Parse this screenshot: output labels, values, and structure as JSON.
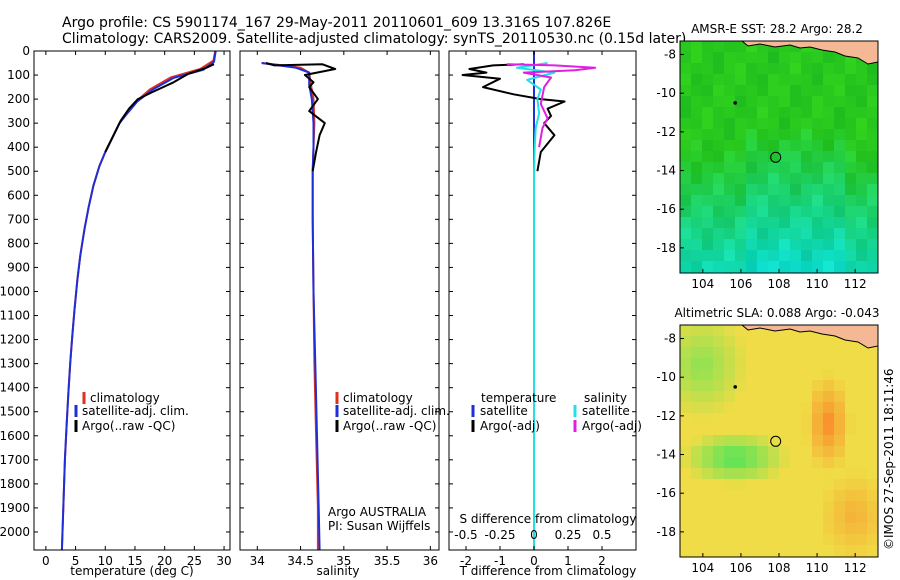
{
  "header": {
    "line1": "Argo profile: CS 5901174_167 29-May-2011 20110601_609 13.316S 107.826E",
    "line2": "Climatology: CARS2009. Satellite-adjusted climatology: synTS_20110530.nc (0.15d later)"
  },
  "side_label": "©IMOS 27-Sep-2011 18:11:46",
  "colors": {
    "climatology": "#e0301e",
    "satellite": "#1f2fd8",
    "argo": "#000000",
    "sat_salinity": "#22e0e8",
    "argo_salinity": "#e020e0"
  },
  "chart_data": [
    {
      "type": "line",
      "id": "temperature",
      "xlabel": "temperature (deg C)",
      "ylabel": "",
      "xlim": [
        -2,
        31
      ],
      "ylim": [
        0,
        2075
      ],
      "x_ticks": [
        0,
        5,
        10,
        15,
        20,
        25,
        30
      ],
      "y_ticks": [
        0,
        100,
        200,
        300,
        400,
        500,
        600,
        700,
        800,
        900,
        1000,
        1100,
        1200,
        1300,
        1400,
        1500,
        1600,
        1700,
        1800,
        1900,
        2000
      ],
      "legend": [
        "climatology",
        "satellite-adj. clim.",
        "Argo(..raw -QC)"
      ],
      "series": [
        {
          "name": "climatology",
          "color": "#e0301e",
          "points": [
            [
              28.5,
              0
            ],
            [
              28.2,
              40
            ],
            [
              26,
              75
            ],
            [
              21,
              110
            ],
            [
              17.5,
              160
            ],
            [
              15.2,
              210
            ],
            [
              13.6,
              260
            ],
            [
              12.4,
              300
            ],
            [
              11.2,
              360
            ],
            [
              10,
              420
            ],
            [
              9,
              480
            ],
            [
              8,
              560
            ],
            [
              7.2,
              650
            ],
            [
              6.5,
              740
            ],
            [
              5.8,
              850
            ],
            [
              5.3,
              950
            ],
            [
              4.8,
              1080
            ],
            [
              4.4,
              1200
            ],
            [
              4.1,
              1300
            ],
            [
              3.8,
              1420
            ],
            [
              3.5,
              1550
            ],
            [
              3.2,
              1700
            ],
            [
              3,
              1850
            ],
            [
              2.8,
              2000
            ],
            [
              2.7,
              2075
            ]
          ]
        },
        {
          "name": "satellite-adj. clim.",
          "color": "#1f2fd8",
          "points": [
            [
              28.6,
              0
            ],
            [
              28.3,
              45
            ],
            [
              26.5,
              78
            ],
            [
              21.5,
              112
            ],
            [
              18,
              160
            ],
            [
              15.4,
              210
            ],
            [
              13.7,
              260
            ],
            [
              12.4,
              300
            ],
            [
              11.2,
              360
            ],
            [
              10,
              420
            ],
            [
              9,
              480
            ],
            [
              8,
              560
            ],
            [
              7.2,
              650
            ],
            [
              6.5,
              740
            ],
            [
              5.8,
              850
            ],
            [
              5.3,
              950
            ],
            [
              4.8,
              1080
            ],
            [
              4.4,
              1200
            ],
            [
              4.1,
              1300
            ],
            [
              3.8,
              1420
            ],
            [
              3.5,
              1550
            ],
            [
              3.2,
              1700
            ],
            [
              3,
              1850
            ],
            [
              2.8,
              2000
            ],
            [
              2.7,
              2075
            ]
          ]
        },
        {
          "name": "Argo(..raw -QC)",
          "color": "#000000",
          "points": [
            [
              28.3,
              55
            ],
            [
              27,
              70
            ],
            [
              24,
              95
            ],
            [
              21.5,
              130
            ],
            [
              18,
              170
            ],
            [
              15.5,
              200
            ],
            [
              14,
              240
            ],
            [
              12.6,
              290
            ],
            [
              11.4,
              350
            ],
            [
              10,
              420
            ]
          ]
        }
      ]
    },
    {
      "type": "line",
      "id": "salinity",
      "xlabel": "salinity",
      "ylabel": "",
      "xlim": [
        33.8,
        36.1
      ],
      "ylim": [
        0,
        2075
      ],
      "x_ticks": [
        34,
        34.5,
        35,
        35.5,
        36
      ],
      "y_ticks": [
        0,
        100,
        200,
        300,
        400,
        500,
        600,
        700,
        800,
        900,
        1000,
        1100,
        1200,
        1300,
        1400,
        1500,
        1600,
        1700,
        1800,
        1900,
        2000
      ],
      "legend": [
        "climatology",
        "satellite-adj. clim.",
        "Argo(..raw -QC)"
      ],
      "annotations": [
        "Argo AUSTRALIA",
        "PI: Susan Wijffels"
      ],
      "series": [
        {
          "name": "climatology",
          "color": "#e0301e",
          "points": [
            [
              34.05,
              50
            ],
            [
              34.3,
              60
            ],
            [
              34.5,
              70
            ],
            [
              34.6,
              90
            ],
            [
              34.62,
              140
            ],
            [
              34.65,
              200
            ],
            [
              34.66,
              300
            ],
            [
              34.65,
              400
            ],
            [
              34.64,
              500
            ],
            [
              34.64,
              700
            ],
            [
              34.65,
              1000
            ],
            [
              34.66,
              1300
            ],
            [
              34.68,
              1600
            ],
            [
              34.7,
              1900
            ],
            [
              34.7,
              2075
            ]
          ]
        },
        {
          "name": "satellite-adj. clim.",
          "color": "#1f2fd8",
          "points": [
            [
              34.05,
              50
            ],
            [
              34.25,
              60
            ],
            [
              34.45,
              70
            ],
            [
              34.6,
              90
            ],
            [
              34.6,
              140
            ],
            [
              34.63,
              200
            ],
            [
              34.65,
              300
            ],
            [
              34.65,
              400
            ],
            [
              34.64,
              500
            ],
            [
              34.64,
              700
            ],
            [
              34.65,
              1000
            ],
            [
              34.67,
              1300
            ],
            [
              34.69,
              1600
            ],
            [
              34.71,
              1900
            ],
            [
              34.72,
              2075
            ]
          ]
        },
        {
          "name": "Argo(..raw -QC)",
          "color": "#000000",
          "points": [
            [
              34.1,
              50
            ],
            [
              34.2,
              60
            ],
            [
              34.75,
              55
            ],
            [
              34.9,
              75
            ],
            [
              34.55,
              100
            ],
            [
              34.65,
              130
            ],
            [
              34.6,
              150
            ],
            [
              34.7,
              200
            ],
            [
              34.6,
              250
            ],
            [
              34.78,
              300
            ],
            [
              34.72,
              350
            ],
            [
              34.68,
              420
            ],
            [
              34.64,
              500
            ]
          ]
        }
      ]
    },
    {
      "type": "line",
      "id": "difference",
      "xlabel": "T difference from climatology",
      "x2label": "S difference from climatology",
      "ylabel": "",
      "xlim": [
        -2.5,
        3
      ],
      "x2lim": [
        -0.625,
        0.75
      ],
      "ylim": [
        0,
        2075
      ],
      "x_ticks": [
        -2,
        -1,
        0,
        1,
        2
      ],
      "x2_ticks": [
        -0.5,
        -0.25,
        0,
        0.25,
        0.5
      ],
      "y_ticks": [
        0,
        100,
        200,
        300,
        400,
        500,
        600,
        700,
        800,
        900,
        1000,
        1100,
        1200,
        1300,
        1400,
        1500,
        1600,
        1700,
        1800,
        1900,
        2000
      ],
      "legend_title_left": "temperature",
      "legend_title_right": "salinity",
      "legend": [
        "satellite",
        "Argo(-adj)",
        "satellite",
        "Argo(-adj)"
      ],
      "series": [
        {
          "name": "satellite",
          "color": "#1f2fd8",
          "points": [
            [
              0,
              0
            ],
            [
              0,
              2075
            ]
          ]
        },
        {
          "name": "Argo(-adj)",
          "color": "#000000",
          "points": [
            [
              -0.3,
              55
            ],
            [
              -1.2,
              60
            ],
            [
              -1.9,
              75
            ],
            [
              -1.4,
              90
            ],
            [
              -2.1,
              100
            ],
            [
              -1,
              115
            ],
            [
              -1.5,
              150
            ],
            [
              -0.6,
              180
            ],
            [
              0.2,
              200
            ],
            [
              0.9,
              210
            ],
            [
              0.4,
              240
            ],
            [
              0.5,
              270
            ],
            [
              0.3,
              300
            ],
            [
              0.6,
              350
            ],
            [
              0.2,
              420
            ],
            [
              0.1,
              500
            ]
          ]
        },
        {
          "name": "satellite",
          "color": "#22e0e8",
          "points": [
            [
              0.4,
              50
            ],
            [
              -0.5,
              70
            ],
            [
              0.6,
              90
            ],
            [
              -0.2,
              120
            ],
            [
              0.2,
              160
            ],
            [
              0.1,
              200
            ],
            [
              0.15,
              260
            ],
            [
              0.05,
              320
            ],
            [
              0.02,
              400
            ],
            [
              0,
              500
            ],
            [
              0,
              2075
            ]
          ]
        },
        {
          "name": "Argo(-adj)",
          "color": "#e020e0",
          "points": [
            [
              -0.8,
              55
            ],
            [
              0.6,
              60
            ],
            [
              1.8,
              70
            ],
            [
              1.2,
              80
            ],
            [
              -0.3,
              90
            ],
            [
              0.5,
              110
            ],
            [
              0.3,
              150
            ],
            [
              0.2,
              220
            ],
            [
              0.4,
              280
            ],
            [
              0.25,
              320
            ],
            [
              0.15,
              400
            ]
          ]
        }
      ]
    },
    {
      "type": "heatmap",
      "id": "sst",
      "title": "AMSR-E SST: 28.2 Argo: 28.2",
      "xlim": [
        102.8,
        113.2
      ],
      "ylim": [
        -19.3,
        -7.3
      ],
      "x_ticks": [
        104,
        106,
        108,
        110,
        112
      ],
      "y_ticks": [
        -8,
        -10,
        -12,
        -14,
        -16,
        -18
      ],
      "profile_location": [
        107.826,
        -13.316
      ],
      "track_point": [
        105.7,
        -10.5
      ]
    },
    {
      "type": "heatmap",
      "id": "sla",
      "title": "Altimetric SLA: 0.088 Argo: -0.043",
      "xlim": [
        102.8,
        113.2
      ],
      "ylim": [
        -19.3,
        -7.3
      ],
      "x_ticks": [
        104,
        106,
        108,
        110,
        112
      ],
      "y_ticks": [
        -8,
        -10,
        -12,
        -14,
        -16,
        -18
      ],
      "profile_location": [
        107.826,
        -13.316
      ],
      "track_point": [
        105.7,
        -10.5
      ]
    }
  ]
}
